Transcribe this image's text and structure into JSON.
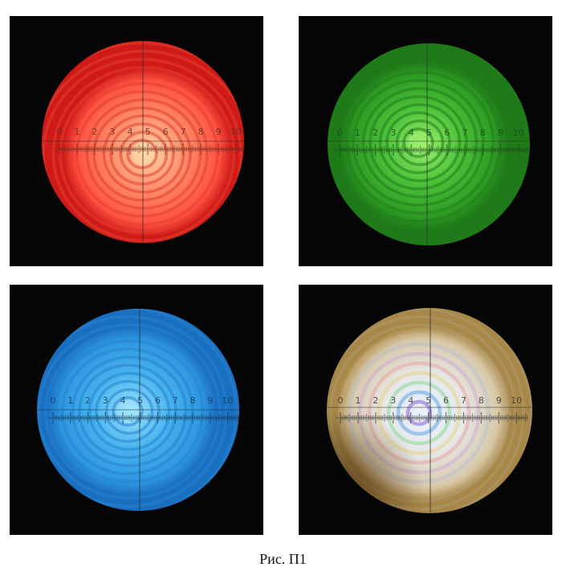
{
  "caption": "Рис. П1",
  "scale_labels": [
    "0",
    "1",
    "2",
    "3",
    "4",
    "5",
    "6",
    "7",
    "8",
    "9",
    "10"
  ],
  "panels": [
    {
      "id": "red",
      "colors": {
        "center": "#ffd8a8",
        "mid": "#ff8c6a",
        "edge": "#ff5040",
        "rim": "#d01a18",
        "ring": "#e0402f",
        "text": "#6a2a1a"
      }
    },
    {
      "id": "green",
      "colors": {
        "center": "#9ef06e",
        "mid": "#4cc23a",
        "edge": "#2c9a22",
        "rim": "#1e7a18",
        "ring": "#237d1c",
        "text": "#1e4a1a"
      }
    },
    {
      "id": "blue",
      "colors": {
        "center": "#9ee4ff",
        "mid": "#46b4ee",
        "edge": "#2c96e0",
        "rim": "#1a70c0",
        "ring": "#2a82d0",
        "text": "#143a5a"
      }
    },
    {
      "id": "white",
      "colors": {
        "center": "#e8f2ff",
        "mid": "#e6e8ea",
        "edge": "#d8c8a8",
        "rim": "#a88848",
        "ring": "#c49ad8",
        "text": "#3a3a3a"
      }
    }
  ]
}
